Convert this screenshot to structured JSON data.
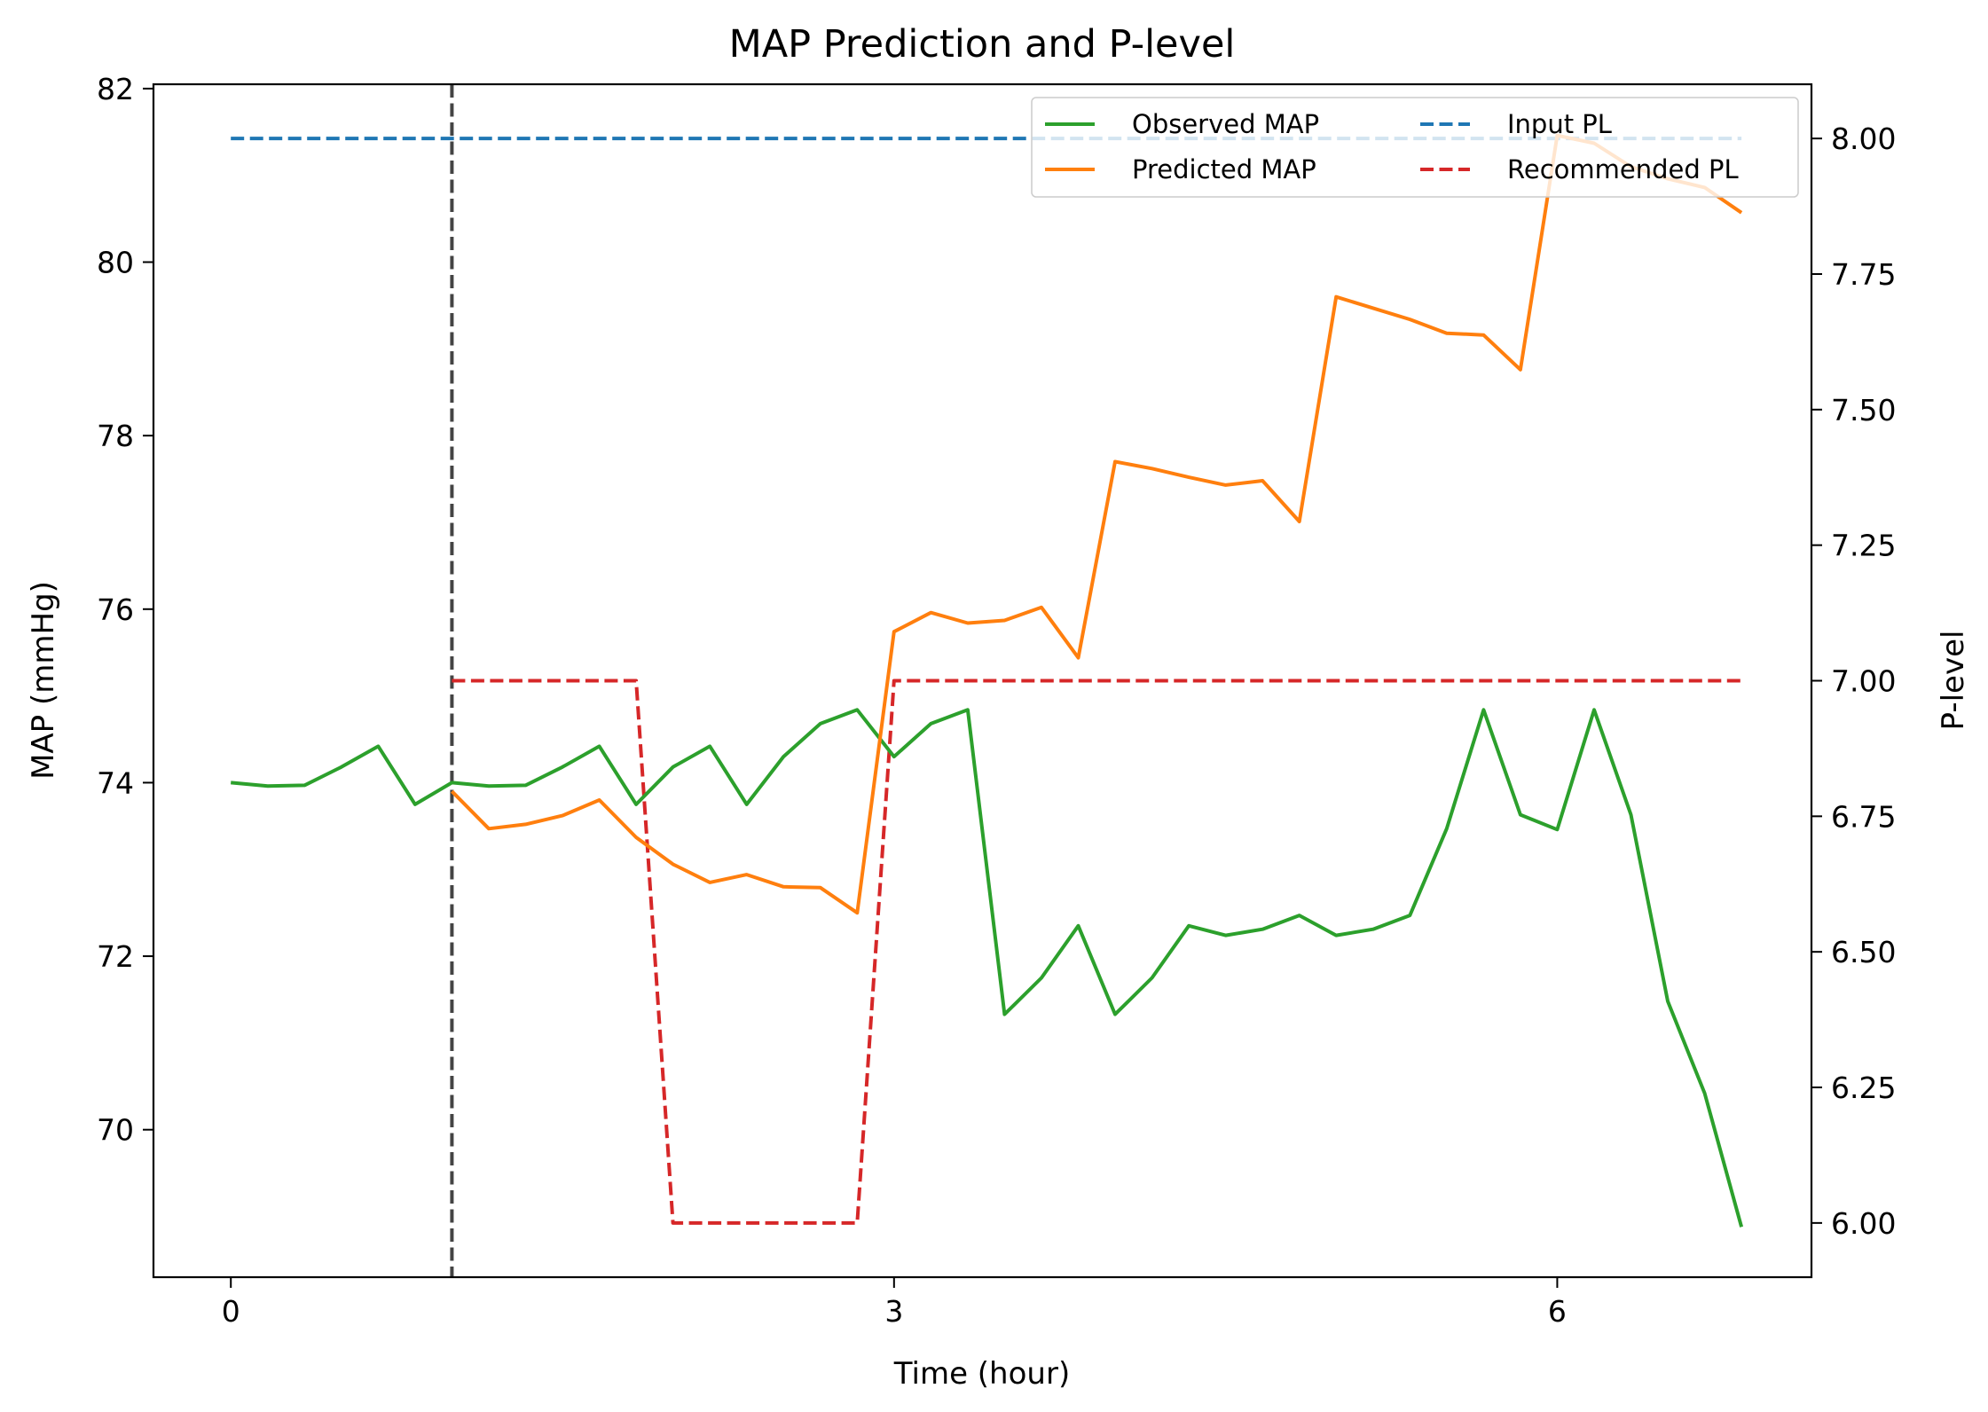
{
  "chart_data": {
    "type": "line",
    "title": "MAP Prediction and P-level",
    "xlabel": "Time (hour)",
    "ylabel": "MAP (mmHg)",
    "y2label": "P-level",
    "xlim": [
      -0.35,
      7.15
    ],
    "ylim": [
      68.3,
      82.05
    ],
    "y2lim": [
      5.9,
      8.1
    ],
    "xticks": [
      0,
      3,
      6
    ],
    "yticks": [
      70,
      72,
      74,
      76,
      78,
      80,
      82
    ],
    "y2ticks": [
      "6.00",
      "6.25",
      "6.50",
      "6.75",
      "7.00",
      "7.25",
      "7.50",
      "7.75",
      "8.00"
    ],
    "grid": false,
    "legend_position": "top-right",
    "legend_columns": 2,
    "vline": {
      "x": 1.0,
      "color": "#444444",
      "style": "dashed"
    },
    "series": [
      {
        "name": "Observed MAP",
        "axis": "left",
        "color": "#2ca02c",
        "style": "solid",
        "x": [
          0,
          0.1667,
          0.3333,
          0.5,
          0.6667,
          0.8333,
          1.0,
          1.1667,
          1.3333,
          1.5,
          1.6667,
          1.8333,
          2.0,
          2.1667,
          2.3333,
          2.5,
          2.6667,
          2.8333,
          3.0,
          3.1667,
          3.3333,
          3.5,
          3.6667,
          3.8333,
          4.0,
          4.1667,
          4.3333,
          4.5,
          4.6667,
          4.8333,
          5.0,
          5.1667,
          5.3333,
          5.5,
          5.6667,
          5.8333,
          6.0,
          6.1667,
          6.3333,
          6.5,
          6.6667,
          6.8333
        ],
        "values": [
          74.0,
          73.96,
          73.97,
          74.18,
          74.42,
          73.75,
          74.0,
          73.96,
          73.97,
          74.18,
          74.42,
          73.75,
          74.18,
          74.42,
          73.75,
          74.3,
          74.68,
          74.84,
          74.3,
          74.68,
          74.84,
          71.33,
          71.75,
          72.35,
          71.33,
          71.75,
          72.35,
          72.24,
          72.31,
          72.47,
          72.24,
          72.31,
          72.47,
          73.47,
          74.84,
          73.63,
          73.46,
          74.84,
          73.63,
          71.48,
          70.42,
          68.88
        ]
      },
      {
        "name": "Predicted MAP",
        "axis": "left",
        "color": "#ff7f0e",
        "style": "solid",
        "x": [
          1.0,
          1.1667,
          1.3333,
          1.5,
          1.6667,
          1.8333,
          2.0,
          2.1667,
          2.3333,
          2.5,
          2.6667,
          2.8333,
          3.0,
          3.1667,
          3.3333,
          3.5,
          3.6667,
          3.8333,
          4.0,
          4.1667,
          4.3333,
          4.5,
          4.6667,
          4.8333,
          5.0,
          5.1667,
          5.3333,
          5.5,
          5.6667,
          5.8333,
          6.0,
          6.1667,
          6.3333,
          6.5,
          6.6667,
          6.8333
        ],
        "values": [
          73.9,
          73.47,
          73.52,
          73.62,
          73.8,
          73.37,
          73.06,
          72.85,
          72.94,
          72.8,
          72.79,
          72.5,
          75.74,
          75.96,
          75.84,
          75.87,
          76.02,
          75.44,
          77.7,
          77.62,
          77.52,
          77.43,
          77.48,
          77.01,
          79.6,
          79.47,
          79.34,
          79.18,
          79.16,
          78.76,
          81.46,
          81.37,
          81.1,
          80.96,
          80.86,
          80.57
        ]
      },
      {
        "name": "Input PL",
        "axis": "right",
        "color": "#1f77b4",
        "style": "dashed",
        "x": [
          0,
          6.8333
        ],
        "values": [
          8.0,
          8.0
        ]
      },
      {
        "name": "Recommended PL",
        "axis": "right",
        "color": "#d62728",
        "style": "dashed",
        "x": [
          1.0,
          1.1667,
          1.3333,
          1.5,
          1.6667,
          1.8333,
          2.0,
          2.1667,
          2.3333,
          2.5,
          2.6667,
          2.8333,
          3.0,
          3.1667,
          3.3333,
          3.5,
          3.6667,
          3.8333,
          4.0,
          4.1667,
          4.3333,
          4.5,
          4.6667,
          4.8333,
          5.0,
          5.1667,
          5.3333,
          5.5,
          5.6667,
          5.8333,
          6.0,
          6.1667,
          6.3333,
          6.5,
          6.6667,
          6.8333
        ],
        "values": [
          7,
          7,
          7,
          7,
          7,
          7,
          6,
          6,
          6,
          6,
          6,
          6,
          7,
          7,
          7,
          7,
          7,
          7,
          7,
          7,
          7,
          7,
          7,
          7,
          7,
          7,
          7,
          7,
          7,
          7,
          7,
          7,
          7,
          7,
          7,
          7
        ]
      }
    ]
  }
}
